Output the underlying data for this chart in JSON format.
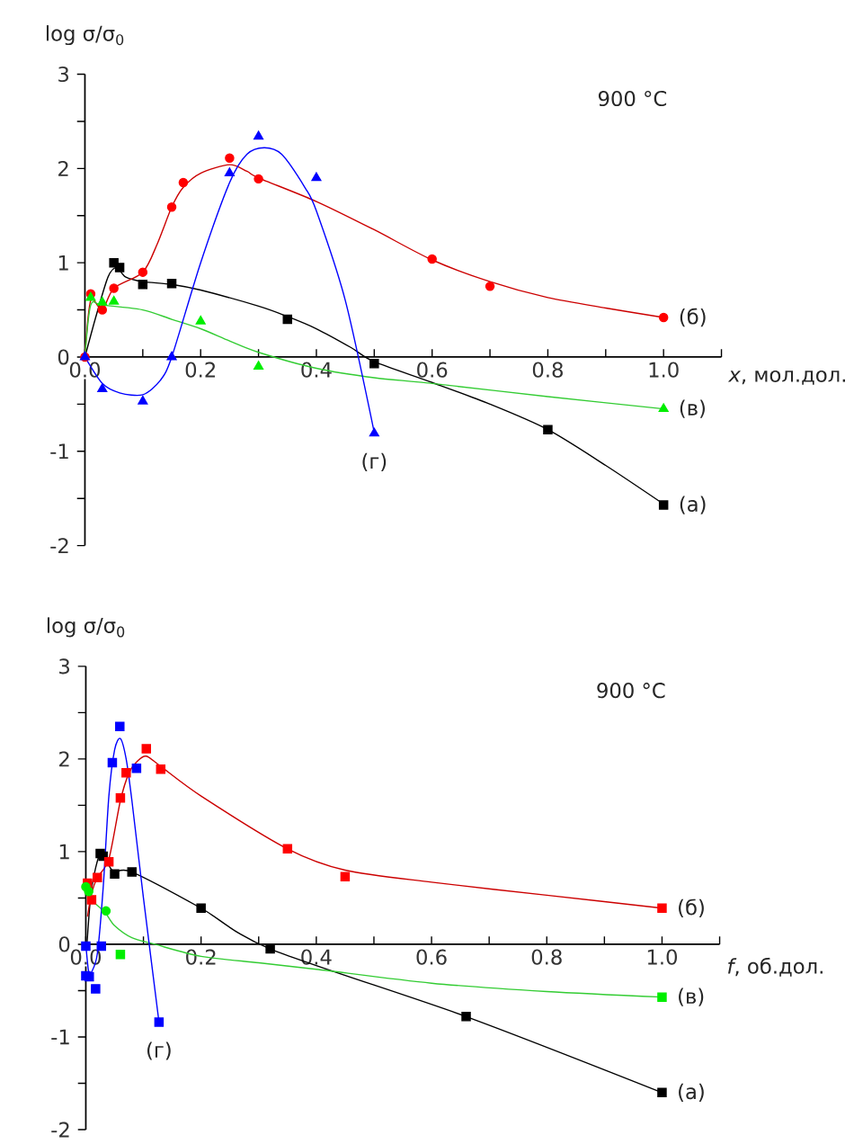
{
  "chart_data": [
    {
      "type": "scatter",
      "ylabel": "log σ/σ$_{0}$",
      "xlabel": "*x*, мол.дол.",
      "annotations": [
        "900 °C"
      ],
      "xlim": [
        0,
        1.1
      ],
      "ylim": [
        -2,
        3
      ],
      "xticks": [
        {
          "value": 0,
          "label": "0.0"
        },
        {
          "value": 0.1,
          "label": null
        },
        {
          "value": 0.2,
          "label": "0.2"
        },
        {
          "value": 0.3,
          "label": null
        },
        {
          "value": 0.4,
          "label": "0.4"
        },
        {
          "value": 0.5,
          "label": null
        },
        {
          "value": 0.6,
          "label": "0.6"
        },
        {
          "value": 0.7,
          "label": null
        },
        {
          "value": 0.8,
          "label": "0.8"
        },
        {
          "value": 0.9,
          "label": null
        },
        {
          "value": 1.0,
          "label": "1.0"
        },
        {
          "value": 1.1,
          "label": null
        }
      ],
      "yticks": [
        -2,
        {
          "value": -1.5,
          "label": null
        },
        -1,
        {
          "value": -0.5,
          "label": null
        },
        0,
        {
          "value": 0.5,
          "label": null
        },
        1,
        {
          "value": 1.5,
          "label": null
        },
        2,
        {
          "value": 2.5,
          "label": null
        },
        3
      ],
      "grid": false,
      "legend": false,
      "series": [
        {
          "type": "line",
          "color": "#000000",
          "marker": "none",
          "x": [
            0,
            0.02,
            0.04,
            0.055,
            0.07,
            0.1,
            0.15,
            0.2,
            0.3,
            0.35,
            0.4,
            0.46,
            0.5,
            0.6,
            0.7,
            0.8,
            0.9,
            1.0
          ],
          "values": [
            0,
            0.45,
            0.85,
            0.95,
            0.85,
            0.8,
            0.77,
            0.71,
            0.54,
            0.43,
            0.3,
            0.1,
            -0.05,
            -0.27,
            -0.5,
            -0.77,
            -1.15,
            -1.56
          ]
        },
        {
          "type": "line",
          "color": "#cc0000",
          "marker": "none",
          "x": [
            0,
            0.01,
            0.03,
            0.05,
            0.1,
            0.125,
            0.15,
            0.17,
            0.2,
            0.25,
            0.28,
            0.3,
            0.4,
            0.5,
            0.6,
            0.7,
            0.8,
            0.9,
            1.0
          ],
          "values": [
            0,
            0.6,
            0.5,
            0.73,
            0.9,
            1.2,
            1.59,
            1.8,
            1.95,
            2.04,
            1.97,
            1.9,
            1.65,
            1.35,
            1.03,
            0.8,
            0.63,
            0.52,
            0.42
          ]
        },
        {
          "type": "line",
          "color": "#33cc33",
          "marker": "none",
          "x": [
            0,
            0.01,
            0.03,
            0.1,
            0.15,
            0.2,
            0.25,
            0.3,
            0.4,
            0.5,
            0.6,
            0.8,
            1.0
          ],
          "values": [
            0,
            0.55,
            0.55,
            0.5,
            0.4,
            0.3,
            0.17,
            0.05,
            -0.12,
            -0.22,
            -0.28,
            -0.42,
            -0.55
          ]
        },
        {
          "type": "line",
          "color": "#0000ff",
          "marker": "none",
          "x": [
            0,
            0.03,
            0.06,
            0.1,
            0.13,
            0.15,
            0.2,
            0.25,
            0.28,
            0.31,
            0.34,
            0.38,
            0.4,
            0.45,
            0.5
          ],
          "values": [
            0,
            -0.28,
            -0.38,
            -0.4,
            -0.25,
            0,
            1.0,
            1.85,
            2.15,
            2.22,
            2.15,
            1.8,
            1.55,
            0.6,
            -0.8
          ]
        },
        {
          "name": "(а)",
          "color": "#000000",
          "marker": "square",
          "x": [
            0.05,
            0.06,
            0.1,
            0.15,
            0.35,
            0.5,
            0.8,
            1.0
          ],
          "values": [
            1.0,
            0.95,
            0.77,
            0.78,
            0.4,
            -0.07,
            -0.77,
            -1.57
          ]
        },
        {
          "name": "(б)",
          "color": "#ff0000",
          "marker": "circle",
          "x": [
            0,
            0.01,
            0.03,
            0.05,
            0.1,
            0.15,
            0.17,
            0.25,
            0.3,
            0.6,
            0.7,
            1.0
          ],
          "values": [
            0,
            0.67,
            0.5,
            0.73,
            0.9,
            1.59,
            1.85,
            2.11,
            1.89,
            1.04,
            0.75,
            0.42
          ]
        },
        {
          "name": "(в)",
          "color": "#00ee00",
          "marker": "triangle",
          "x": [
            0.01,
            0.03,
            0.05,
            0.2,
            0.3,
            1.0
          ],
          "values": [
            0.63,
            0.58,
            0.59,
            0.38,
            -0.1,
            -0.55
          ]
        },
        {
          "name": "(г)",
          "color": "#0000ff",
          "marker": "triangle",
          "x": [
            0,
            0.03,
            0.1,
            0.15,
            0.25,
            0.3,
            0.4,
            0.5
          ],
          "values": [
            0,
            -0.34,
            -0.47,
            0,
            1.95,
            2.34,
            1.9,
            -0.81
          ]
        }
      ]
    },
    {
      "type": "scatter",
      "ylabel": "log σ/σ$_{0}$",
      "xlabel": "*f*, об.дол.",
      "annotations": [
        "900 °C"
      ],
      "xlim": [
        0,
        1.1
      ],
      "ylim": [
        -2,
        3
      ],
      "xticks": [
        {
          "value": 0,
          "label": "0.0"
        },
        {
          "value": 0.1,
          "label": null
        },
        {
          "value": 0.2,
          "label": "0.2"
        },
        {
          "value": 0.3,
          "label": null
        },
        {
          "value": 0.4,
          "label": "0.4"
        },
        {
          "value": 0.5,
          "label": null
        },
        {
          "value": 0.6,
          "label": "0.6"
        },
        {
          "value": 0.7,
          "label": null
        },
        {
          "value": 0.8,
          "label": "0.8"
        },
        {
          "value": 0.9,
          "label": null
        },
        {
          "value": 1.0,
          "label": "1.0"
        },
        {
          "value": 1.1,
          "label": null
        }
      ],
      "yticks": [
        -2,
        {
          "value": -1.5,
          "label": null
        },
        -1,
        {
          "value": -0.5,
          "label": null
        },
        0,
        {
          "value": 0.5,
          "label": null
        },
        1,
        {
          "value": 1.5,
          "label": null
        },
        2,
        {
          "value": 2.5,
          "label": null
        },
        3
      ],
      "grid": false,
      "legend": false,
      "series": [
        {
          "type": "line",
          "color": "#000000",
          "marker": "none",
          "x": [
            0.002,
            0.01,
            0.025,
            0.04,
            0.05,
            0.08,
            0.2,
            0.32,
            0.66,
            1.0
          ],
          "values": [
            0,
            0.6,
            0.98,
            0.85,
            0.78,
            0.78,
            0.39,
            -0.05,
            -0.78,
            -1.6
          ]
        },
        {
          "type": "line",
          "color": "#cc0000",
          "marker": "none",
          "x": [
            0.003,
            0.01,
            0.02,
            0.04,
            0.06,
            0.075,
            0.09,
            0.105,
            0.13,
            0.2,
            0.35,
            0.45,
            0.6,
            0.8,
            1.0
          ],
          "values": [
            0.3,
            0.55,
            0.72,
            0.92,
            1.55,
            1.85,
            1.98,
            2.03,
            1.92,
            1.6,
            1.03,
            0.8,
            0.67,
            0.53,
            0.39
          ]
        },
        {
          "type": "line",
          "color": "#33cc33",
          "marker": "none",
          "x": [
            0,
            0.005,
            0.02,
            0.035,
            0.05,
            0.08,
            0.12,
            0.2,
            0.3,
            0.4,
            0.6,
            0.8,
            1.0
          ],
          "values": [
            0.62,
            0.5,
            0.42,
            0.33,
            0.2,
            0.07,
            0,
            -0.13,
            -0.2,
            -0.27,
            -0.42,
            -0.51,
            -0.57
          ]
        },
        {
          "type": "line",
          "color": "#0000ff",
          "marker": "none",
          "x": [
            0,
            0.005,
            0.01,
            0.02,
            0.03,
            0.04,
            0.05,
            0.06,
            0.07,
            0.08,
            0.1,
            0.127
          ],
          "values": [
            0,
            -0.3,
            -0.3,
            -0.1,
            0.6,
            1.6,
            2.1,
            2.22,
            2.0,
            1.55,
            0.5,
            -0.84
          ]
        },
        {
          "name": "(а)",
          "color": "#000000",
          "marker": "square",
          "x": [
            0.025,
            0.03,
            0.05,
            0.08,
            0.2,
            0.32,
            0.66,
            1.0
          ],
          "values": [
            0.98,
            0.95,
            0.76,
            0.78,
            0.39,
            -0.05,
            -0.78,
            -1.6
          ]
        },
        {
          "name": "(б)",
          "color": "#ff0000",
          "marker": "square",
          "x": [
            0.003,
            0.01,
            0.02,
            0.04,
            0.06,
            0.07,
            0.105,
            0.13,
            0.35,
            0.45,
            1.0
          ],
          "values": [
            0.66,
            0.48,
            0.72,
            0.89,
            1.58,
            1.85,
            2.11,
            1.89,
            1.03,
            0.73,
            0.39
          ]
        },
        {
          "color": "#00ee00",
          "marker": "circle",
          "x": [
            0,
            0.005,
            0.035
          ],
          "values": [
            0.62,
            0.57,
            0.36
          ]
        },
        {
          "name": "(в)",
          "color": "#00ee00",
          "marker": "square",
          "x": [
            0.06,
            1.0
          ],
          "values": [
            -0.11,
            -0.57
          ]
        },
        {
          "name": "(г)",
          "color": "#0000ff",
          "marker": "square",
          "x": [
            0,
            0,
            0.006,
            0.017,
            0.027,
            0.046,
            0.059,
            0.088,
            0.127
          ],
          "values": [
            -0.02,
            -0.34,
            -0.35,
            -0.48,
            -0.02,
            1.96,
            2.35,
            1.9,
            -0.84
          ]
        }
      ]
    }
  ]
}
